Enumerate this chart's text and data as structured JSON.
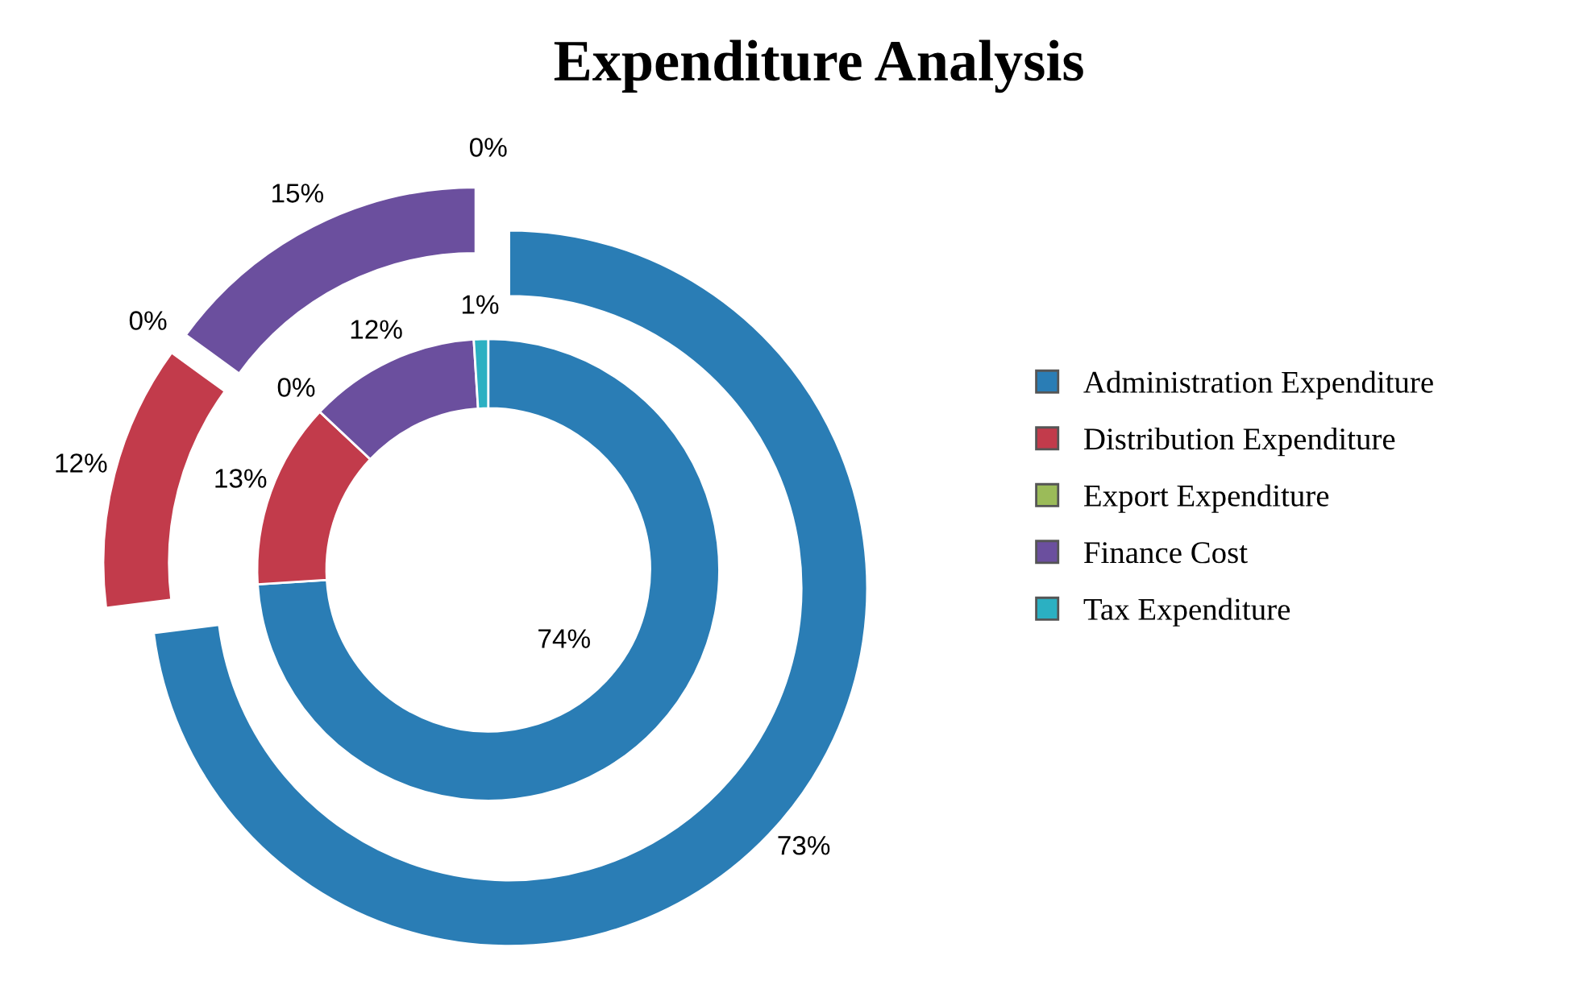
{
  "chart_data": {
    "type": "donut",
    "title": "Expenditure Analysis",
    "categories": [
      "Administration Expenditure",
      "Distribution Expenditure",
      "Export Expenditure",
      "Finance Cost",
      "Tax Expenditure"
    ],
    "colors": [
      "#2a7db5",
      "#c23b4b",
      "#9bbb59",
      "#6b4f9e",
      "#2bb0c2"
    ],
    "series": [
      {
        "values": [
          74,
          13,
          0,
          12,
          1
        ],
        "value_labels": [
          "74%",
          "13%",
          "0%",
          "12%",
          "1%"
        ]
      },
      {
        "values": [
          73,
          12,
          0,
          15,
          0
        ],
        "value_labels": [
          "73%",
          "12%",
          "0%",
          "15%",
          "0%"
        ]
      }
    ],
    "legend": "right"
  }
}
